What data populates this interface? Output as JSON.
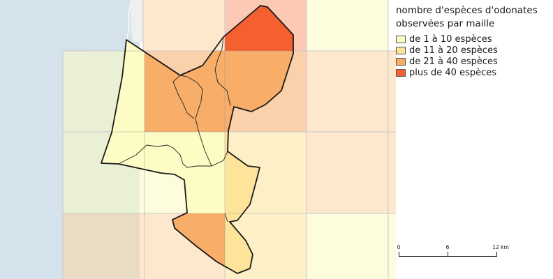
{
  "legend": {
    "title_line1": "nombre d'espèces d'odonates",
    "title_line2": "observées par maille",
    "classes": [
      {
        "label": "de 1 à 10 espèces",
        "color": "#fdfcc4"
      },
      {
        "label": "de 11 à 20 espèces",
        "color": "#fde49a"
      },
      {
        "label": "de 21 à 40 espèces",
        "color": "#f8ad68"
      },
      {
        "label": "plus de 40 espèces",
        "color": "#f4602f"
      }
    ]
  },
  "scale": {
    "labels": [
      "0",
      "6",
      "12 km"
    ]
  },
  "colors": {
    "sea": "#d4e2ec",
    "coast_band": "#eef0ee",
    "grid_line": "#c8c8c8",
    "boundary": "#222222"
  }
}
